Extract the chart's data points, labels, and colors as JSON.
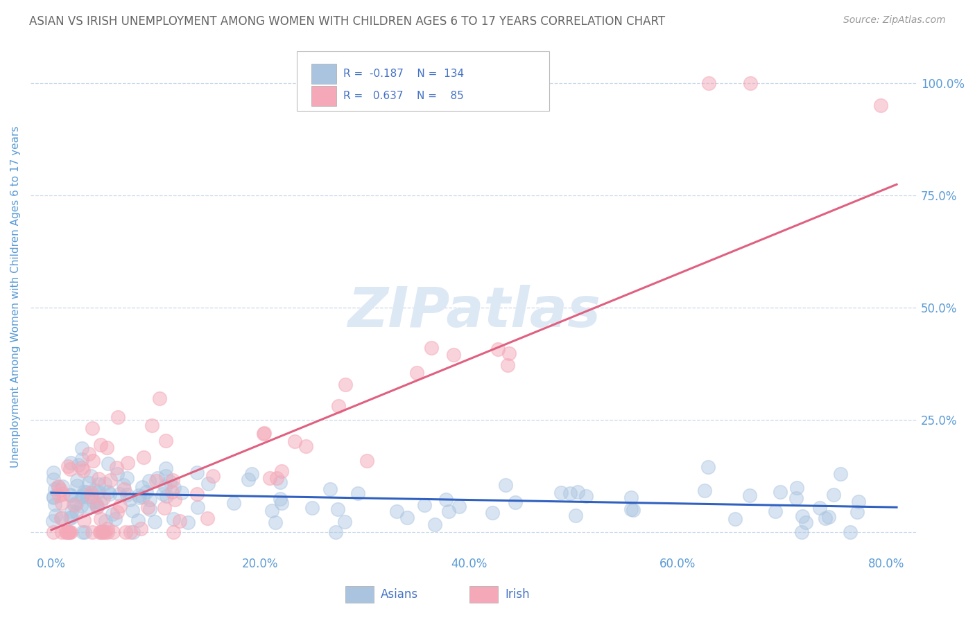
{
  "title": "ASIAN VS IRISH UNEMPLOYMENT AMONG WOMEN WITH CHILDREN AGES 6 TO 17 YEARS CORRELATION CHART",
  "source": "Source: ZipAtlas.com",
  "xlabel_ticks": [
    "0.0%",
    "20.0%",
    "40.0%",
    "60.0%",
    "80.0%"
  ],
  "xlabel_vals": [
    0.0,
    0.2,
    0.4,
    0.6,
    0.8
  ],
  "ylabel": "Unemployment Among Women with Children Ages 6 to 17 years",
  "ytick_vals": [
    0.0,
    0.25,
    0.5,
    0.75,
    1.0
  ],
  "ytick_labels": [
    "",
    "25.0%",
    "50.0%",
    "75.0%",
    "100.0%"
  ],
  "xlim": [
    -0.02,
    0.83
  ],
  "ylim": [
    -0.05,
    1.1
  ],
  "asian_R": -0.187,
  "asian_N": 134,
  "irish_R": 0.637,
  "irish_N": 85,
  "asian_color": "#aac4e0",
  "irish_color": "#f4a8b8",
  "asian_line_color": "#3060c0",
  "irish_line_color": "#e06080",
  "title_color": "#666666",
  "axis_color": "#5b9bd5",
  "legend_text_color": "#4472c4",
  "watermark_color": "#dde8f5",
  "background_color": "#ffffff",
  "grid_color": "#c8d8ec",
  "asian_line_slope": -0.04,
  "asian_line_intercept": 0.088,
  "asian_line_x0": 0.0,
  "asian_line_x1": 0.81,
  "irish_line_slope": 0.95,
  "irish_line_intercept": 0.005,
  "irish_line_x0": 0.0,
  "irish_line_x1": 0.81
}
